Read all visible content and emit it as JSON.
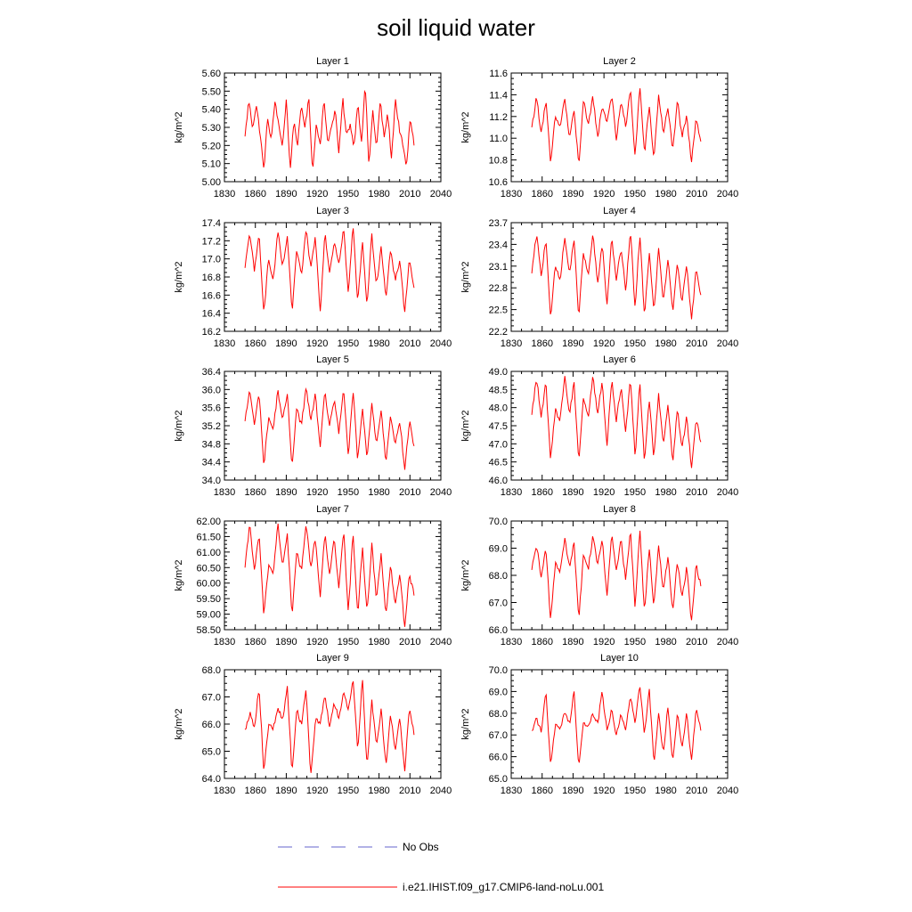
{
  "title": "soil liquid water",
  "legend": {
    "items": [
      {
        "label": "No Obs",
        "color": "#6666cc",
        "style": "dashed"
      },
      {
        "label": "i.e21.IHIST.f09_g17.CMIP6-land-noLu.001",
        "color": "#ff0000",
        "style": "solid"
      }
    ]
  },
  "chart_data": [
    {
      "type": "line",
      "title": "Layer 1",
      "ylabel": "kg/m^2",
      "xlim": [
        1830,
        2040
      ],
      "ylim": [
        5.0,
        5.6
      ],
      "xticks": [
        "1830",
        "1860",
        "1890",
        "1920",
        "1950",
        "1980",
        "2010",
        "2040"
      ],
      "yticks": [
        "5.00",
        "5.10",
        "5.20",
        "5.30",
        "5.40",
        "5.50",
        "5.60"
      ],
      "series": [
        {
          "color": "#ff0000",
          "x_start": 1850,
          "x_end": 2014,
          "anchors": [
            5.25,
            5.45,
            5.3,
            5.42,
            5.27,
            5.06,
            5.35,
            5.23,
            5.45,
            5.3,
            5.2,
            5.46,
            5.06,
            5.34,
            5.2,
            5.42,
            5.3,
            5.46,
            5.05,
            5.33,
            5.2,
            5.45,
            5.22,
            5.3,
            5.4,
            5.15,
            5.46,
            5.25,
            5.32,
            5.19,
            5.44,
            5.22,
            5.54,
            5.08,
            5.4,
            5.18,
            5.45,
            5.24,
            5.38,
            5.12,
            5.46,
            5.3,
            5.2,
            5.08,
            5.36,
            5.2
          ]
        }
      ]
    },
    {
      "type": "line",
      "title": "Layer 2",
      "ylabel": "kg/m^2",
      "xlim": [
        1830,
        2040
      ],
      "ylim": [
        10.6,
        11.6
      ],
      "xticks": [
        "1830",
        "1860",
        "1890",
        "1920",
        "1950",
        "1980",
        "2010",
        "2040"
      ],
      "yticks": [
        "10.6",
        "10.8",
        "11.0",
        "11.2",
        "11.4",
        "11.6"
      ],
      "series": [
        {
          "color": "#ff0000",
          "x_start": 1850,
          "x_end": 2014,
          "anchors": [
            11.1,
            11.38,
            11.05,
            11.35,
            10.76,
            11.2,
            11.1,
            11.37,
            11.0,
            11.25,
            10.75,
            11.35,
            11.1,
            11.4,
            11.0,
            11.3,
            11.15,
            11.4,
            10.98,
            11.35,
            11.1,
            11.45,
            10.82,
            11.49,
            10.85,
            11.3,
            10.8,
            11.4,
            11.05,
            11.28,
            10.88,
            11.35,
            11.0,
            11.2,
            10.77,
            11.2,
            10.97
          ]
        }
      ]
    },
    {
      "type": "line",
      "title": "Layer 3",
      "ylabel": "kg/m^2",
      "xlim": [
        1830,
        2040
      ],
      "ylim": [
        16.2,
        17.4
      ],
      "xticks": [
        "1830",
        "1860",
        "1890",
        "1920",
        "1950",
        "1980",
        "2010",
        "2040"
      ],
      "yticks": [
        "16.2",
        "16.4",
        "16.6",
        "16.8",
        "17.0",
        "17.2",
        "17.4"
      ],
      "series": [
        {
          "color": "#ff0000",
          "x_start": 1850,
          "x_end": 2014,
          "anchors": [
            16.9,
            17.3,
            16.85,
            17.28,
            16.4,
            17.0,
            16.75,
            17.3,
            16.9,
            17.25,
            16.4,
            17.1,
            16.8,
            17.32,
            16.9,
            17.25,
            16.4,
            17.3,
            16.85,
            17.2,
            16.95,
            17.35,
            16.6,
            17.38,
            16.5,
            17.2,
            16.48,
            17.28,
            16.7,
            17.15,
            16.55,
            17.1,
            16.75,
            17.0,
            16.4,
            17.0,
            16.68
          ]
        }
      ]
    },
    {
      "type": "line",
      "title": "Layer 4",
      "ylabel": "kg/m^2",
      "xlim": [
        1830,
        2040
      ],
      "ylim": [
        22.2,
        23.7
      ],
      "xticks": [
        "1830",
        "1860",
        "1890",
        "1920",
        "1950",
        "1980",
        "2010",
        "2040"
      ],
      "yticks": [
        "22.2",
        "22.5",
        "22.8",
        "23.1",
        "23.4",
        "23.7"
      ],
      "series": [
        {
          "color": "#ff0000",
          "x_start": 1850,
          "x_end": 2014,
          "anchors": [
            23.0,
            23.55,
            22.95,
            23.5,
            22.38,
            23.1,
            22.9,
            23.5,
            23.0,
            23.45,
            22.4,
            23.3,
            22.95,
            23.55,
            22.85,
            23.4,
            22.55,
            23.5,
            22.9,
            23.35,
            22.75,
            23.6,
            22.5,
            23.55,
            22.4,
            23.3,
            22.45,
            23.35,
            22.6,
            23.2,
            22.45,
            23.15,
            22.6,
            23.1,
            22.35,
            23.05,
            22.7
          ]
        }
      ]
    },
    {
      "type": "line",
      "title": "Layer 5",
      "ylabel": "kg/m^2",
      "xlim": [
        1830,
        2040
      ],
      "ylim": [
        34.0,
        36.4
      ],
      "xticks": [
        "1830",
        "1860",
        "1890",
        "1920",
        "1950",
        "1980",
        "2010",
        "2040"
      ],
      "yticks": [
        "34.0",
        "34.4",
        "34.8",
        "35.2",
        "35.6",
        "36.0",
        "36.4"
      ],
      "series": [
        {
          "color": "#ff0000",
          "x_start": 1850,
          "x_end": 2014,
          "anchors": [
            35.3,
            36.0,
            35.2,
            35.95,
            34.3,
            35.4,
            35.1,
            36.0,
            35.3,
            35.9,
            34.3,
            35.6,
            35.2,
            36.05,
            35.3,
            35.9,
            34.7,
            35.95,
            35.2,
            35.8,
            35.0,
            36.05,
            34.5,
            36.0,
            34.4,
            35.6,
            34.45,
            35.7,
            34.8,
            35.55,
            34.4,
            35.45,
            34.8,
            35.3,
            34.2,
            35.3,
            34.75
          ]
        }
      ]
    },
    {
      "type": "line",
      "title": "Layer 6",
      "ylabel": "kg/m^2",
      "xlim": [
        1830,
        2040
      ],
      "ylim": [
        46.0,
        49.0
      ],
      "xticks": [
        "1830",
        "1860",
        "1890",
        "1920",
        "1950",
        "1980",
        "2010",
        "2040"
      ],
      "yticks": [
        "46.0",
        "46.5",
        "47.0",
        "47.5",
        "48.0",
        "48.5",
        "49.0"
      ],
      "series": [
        {
          "color": "#ff0000",
          "x_start": 1850,
          "x_end": 2014,
          "anchors": [
            47.8,
            48.85,
            47.7,
            48.7,
            46.5,
            48.0,
            47.6,
            48.9,
            47.8,
            48.7,
            46.5,
            48.3,
            47.7,
            48.9,
            47.8,
            48.75,
            46.9,
            48.8,
            47.6,
            48.6,
            47.3,
            48.85,
            46.6,
            48.75,
            46.5,
            48.2,
            46.6,
            48.4,
            47.0,
            48.1,
            46.5,
            47.95,
            46.9,
            47.75,
            46.3,
            47.7,
            47.05
          ]
        }
      ]
    },
    {
      "type": "line",
      "title": "Layer 7",
      "ylabel": "kg/m^2",
      "xlim": [
        1830,
        2040
      ],
      "ylim": [
        58.5,
        62.0
      ],
      "xticks": [
        "1830",
        "1860",
        "1890",
        "1920",
        "1950",
        "1980",
        "2010",
        "2040"
      ],
      "yticks": [
        "58.50",
        "59.00",
        "59.50",
        "60.00",
        "60.50",
        "61.00",
        "61.50",
        "62.00"
      ],
      "series": [
        {
          "color": "#ff0000",
          "x_start": 1850,
          "x_end": 2014,
          "anchors": [
            60.5,
            61.9,
            60.4,
            61.6,
            58.9,
            60.6,
            60.3,
            61.95,
            60.5,
            61.6,
            58.9,
            61.0,
            60.4,
            61.9,
            60.5,
            61.5,
            59.5,
            61.6,
            60.3,
            61.4,
            59.8,
            61.7,
            59.0,
            61.65,
            58.95,
            61.2,
            59.0,
            61.3,
            59.4,
            61.0,
            58.9,
            60.6,
            59.3,
            60.35,
            58.55,
            60.3,
            59.6
          ]
        }
      ]
    },
    {
      "type": "line",
      "title": "Layer 8",
      "ylabel": "kg/m^2",
      "xlim": [
        1830,
        2040
      ],
      "ylim": [
        66.0,
        70.0
      ],
      "xticks": [
        "1830",
        "1860",
        "1890",
        "1920",
        "1950",
        "1980",
        "2010",
        "2040"
      ],
      "yticks": [
        "66.0",
        "67.0",
        "68.0",
        "69.0",
        "70.0"
      ],
      "series": [
        {
          "color": "#ff0000",
          "x_start": 1850,
          "x_end": 2014,
          "anchors": [
            68.2,
            69.1,
            67.9,
            69.0,
            66.3,
            68.5,
            68.1,
            69.4,
            68.3,
            69.2,
            66.3,
            68.8,
            68.2,
            69.5,
            68.4,
            69.3,
            67.2,
            69.5,
            68.2,
            69.3,
            67.8,
            69.7,
            66.7,
            69.8,
            66.6,
            69.0,
            66.8,
            69.1,
            67.4,
            68.7,
            66.6,
            68.5,
            67.2,
            68.3,
            66.3,
            68.4,
            67.6
          ]
        }
      ]
    },
    {
      "type": "line",
      "title": "Layer 9",
      "ylabel": "kg/m^2",
      "xlim": [
        1830,
        2040
      ],
      "ylim": [
        64.0,
        68.0
      ],
      "xticks": [
        "1830",
        "1860",
        "1890",
        "1920",
        "1950",
        "1980",
        "2010",
        "2040"
      ],
      "yticks": [
        "64.0",
        "65.0",
        "66.0",
        "67.0",
        "68.0"
      ],
      "series": [
        {
          "color": "#ff0000",
          "x_start": 1850,
          "x_end": 2014,
          "anchors": [
            65.8,
            66.4,
            65.9,
            67.4,
            64.2,
            66.0,
            65.8,
            66.6,
            66.1,
            67.4,
            64.2,
            66.5,
            66.0,
            67.3,
            64.1,
            66.2,
            66.0,
            67.0,
            65.9,
            66.8,
            66.2,
            67.2,
            66.5,
            67.7,
            65.0,
            67.7,
            64.3,
            66.9,
            65.2,
            66.6,
            64.4,
            66.4,
            65.0,
            66.3,
            64.2,
            66.7,
            65.6
          ]
        }
      ]
    },
    {
      "type": "line",
      "title": "Layer 10",
      "ylabel": "kg/m^2",
      "xlim": [
        1830,
        2040
      ],
      "ylim": [
        65.0,
        70.0
      ],
      "xticks": [
        "1830",
        "1860",
        "1890",
        "1920",
        "1950",
        "1980",
        "2010",
        "2040"
      ],
      "yticks": [
        "65.0",
        "66.0",
        "67.0",
        "68.0",
        "69.0",
        "70.0"
      ],
      "series": [
        {
          "color": "#ff0000",
          "x_start": 1850,
          "x_end": 2014,
          "anchors": [
            67.2,
            67.8,
            67.1,
            69.0,
            65.6,
            67.5,
            67.3,
            68.0,
            67.5,
            69.0,
            65.5,
            67.6,
            67.3,
            68.0,
            67.5,
            69.0,
            67.2,
            68.1,
            67.0,
            68.0,
            67.2,
            68.8,
            67.5,
            69.3,
            67.0,
            69.2,
            65.7,
            68.0,
            66.2,
            68.3,
            65.8,
            68.0,
            66.4,
            68.0,
            65.8,
            68.3,
            67.2
          ]
        }
      ]
    }
  ]
}
